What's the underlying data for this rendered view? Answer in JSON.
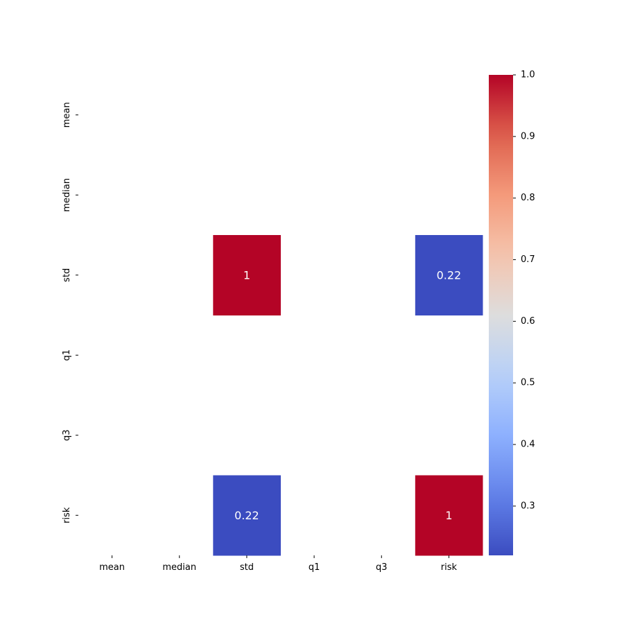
{
  "chart_data": {
    "type": "heatmap",
    "title": "",
    "xlabel": "",
    "ylabel": "",
    "columns": [
      "mean",
      "median",
      "std",
      "q1",
      "q3",
      "risk"
    ],
    "rows": [
      "mean",
      "median",
      "std",
      "q1",
      "q3",
      "risk"
    ],
    "values": [
      [
        null,
        null,
        null,
        null,
        null,
        null
      ],
      [
        null,
        null,
        null,
        null,
        null,
        null
      ],
      [
        null,
        null,
        1.0,
        null,
        null,
        0.22
      ],
      [
        null,
        null,
        null,
        null,
        null,
        null
      ],
      [
        null,
        null,
        null,
        null,
        null,
        null
      ],
      [
        null,
        null,
        0.22,
        null,
        null,
        1.0
      ]
    ],
    "annotations": [
      [
        "",
        "",
        "",
        "",
        "",
        ""
      ],
      [
        "",
        "",
        "",
        "",
        "",
        ""
      ],
      [
        "",
        "",
        "1",
        "",
        "",
        "0.22"
      ],
      [
        "",
        "",
        "",
        "",
        "",
        ""
      ],
      [
        "",
        "",
        "",
        "",
        "",
        ""
      ],
      [
        "",
        "",
        "0.22",
        "",
        "",
        "1"
      ]
    ],
    "colormap": "coolwarm",
    "colorbar": {
      "min": 0.22,
      "max": 1.0,
      "ticks": [
        0.3,
        0.4,
        0.5,
        0.6,
        0.7,
        0.8,
        0.9,
        1.0
      ],
      "tick_labels": [
        "0.3",
        "0.4",
        "0.5",
        "0.6",
        "0.7",
        "0.8",
        "0.9",
        "1.0"
      ]
    },
    "grid": false,
    "colors": {
      "low": "#3b4cc0",
      "mid": "#dddddd",
      "high": "#b40426",
      "text": "#ffffff",
      "axis": "#000000"
    }
  }
}
